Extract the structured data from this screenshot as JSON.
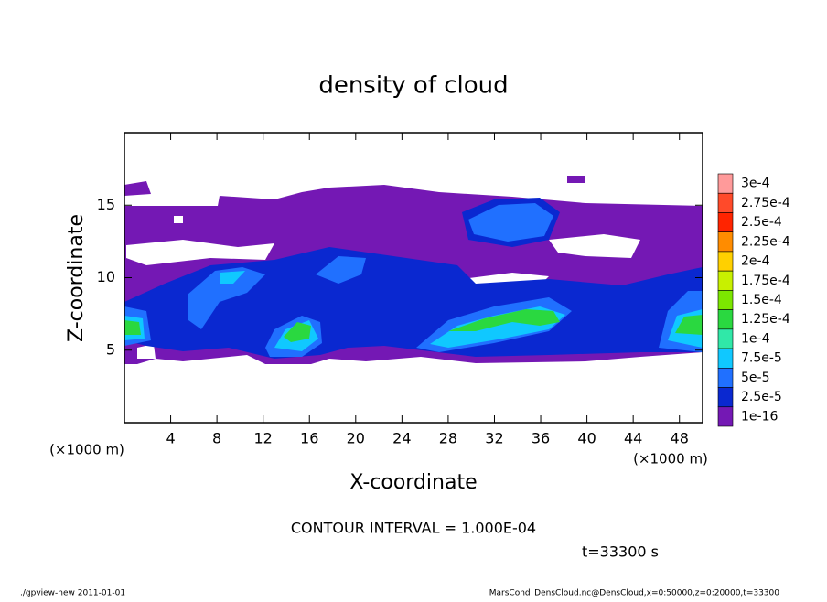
{
  "chart_data": {
    "type": "contour",
    "title": "density of cloud",
    "xlabel": "X-coordinate",
    "ylabel": "Z-coordinate",
    "x_unit_labels": [
      "(×1000 m)",
      "(×1000 m)"
    ],
    "xlim": [
      0,
      50
    ],
    "ylim": [
      0,
      20
    ],
    "xticks": [
      4,
      8,
      12,
      16,
      20,
      24,
      28,
      32,
      36,
      40,
      44,
      48
    ],
    "yticks": [
      5,
      10,
      15
    ],
    "colorbar": {
      "levels": [
        {
          "value": 0.0003,
          "label": "3e-4"
        },
        {
          "value": 0.000275,
          "label": "2.75e-4"
        },
        {
          "value": 0.00025,
          "label": "2.5e-4"
        },
        {
          "value": 0.000225,
          "label": "2.25e-4"
        },
        {
          "value": 0.0002,
          "label": "2e-4"
        },
        {
          "value": 0.000175,
          "label": "1.75e-4"
        },
        {
          "value": 0.00015,
          "label": "1.5e-4"
        },
        {
          "value": 0.000125,
          "label": "1.25e-4"
        },
        {
          "value": 0.0001,
          "label": "1e-4"
        },
        {
          "value": 7.5e-05,
          "label": "7.5e-5"
        },
        {
          "value": 5e-05,
          "label": "5e-5"
        },
        {
          "value": 2.5e-05,
          "label": "2.5e-5"
        },
        {
          "value": 1e-16,
          "label": "1e-16"
        }
      ],
      "colors": [
        "#ff9a9a",
        "#ff4a2a",
        "#ff2400",
        "#ff8c00",
        "#ffd000",
        "#c8f000",
        "#7ce600",
        "#2ad840",
        "#30e8a8",
        "#10c8ff",
        "#2070ff",
        "#0a28d0",
        "#7418b4"
      ]
    },
    "contour_interval": "CONTOUR INTERVAL = 1.000E-04",
    "time_label": "t=33300 s",
    "footer_left": "./gpview-new  2011-01-01",
    "footer_right": "MarsCond_DensCloud.nc@DensCloud,x=0:50000,z=0:20000,t=33300"
  }
}
